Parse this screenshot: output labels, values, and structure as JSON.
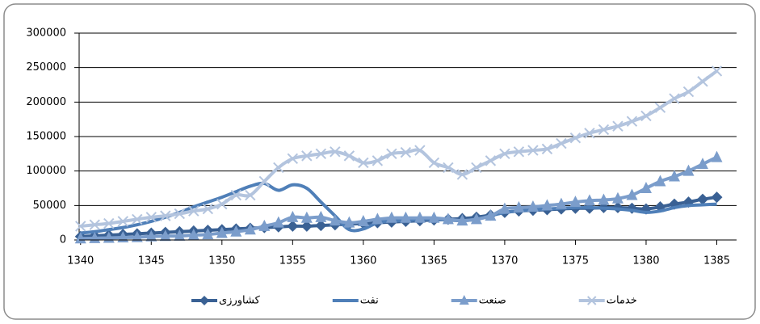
{
  "chart_data": {
    "type": "line",
    "x": [
      1340,
      1341,
      1342,
      1343,
      1344,
      1345,
      1346,
      1347,
      1348,
      1349,
      1350,
      1351,
      1352,
      1353,
      1354,
      1355,
      1356,
      1357,
      1358,
      1359,
      1360,
      1361,
      1362,
      1363,
      1364,
      1365,
      1366,
      1367,
      1368,
      1369,
      1370,
      1371,
      1372,
      1373,
      1374,
      1375,
      1376,
      1377,
      1378,
      1379,
      1380,
      1381,
      1382,
      1383,
      1384,
      1385
    ],
    "xlim": [
      1339.9,
      1386.4
    ],
    "xticks": [
      1340,
      1345,
      1350,
      1355,
      1360,
      1365,
      1370,
      1375,
      1380,
      1385
    ],
    "ylim": [
      0,
      300000
    ],
    "yticks": [
      0,
      50000,
      100000,
      150000,
      200000,
      250000,
      300000
    ],
    "grid": true,
    "legend": "bottom",
    "series": [
      {
        "name": "کشاورزی",
        "color": "#3a6194",
        "marker": "diamond",
        "values": [
          5000,
          6000,
          7000,
          8000,
          9000,
          10000,
          11000,
          12000,
          13000,
          14000,
          15000,
          16000,
          17000,
          18000,
          19000,
          20000,
          20000,
          21000,
          22000,
          23000,
          24000,
          25000,
          26000,
          27000,
          28000,
          29000,
          30000,
          31000,
          33000,
          36000,
          40000,
          42000,
          43000,
          44000,
          45000,
          46000,
          46000,
          47000,
          47000,
          46000,
          45000,
          48000,
          52000,
          55000,
          59000,
          62000
        ]
      },
      {
        "name": "نفت",
        "color": "#4f7fb8",
        "marker": "none",
        "values": [
          10000,
          12000,
          15000,
          18000,
          22000,
          27000,
          33000,
          40000,
          48000,
          55000,
          62000,
          70000,
          78000,
          82000,
          72000,
          80000,
          75000,
          55000,
          35000,
          15000,
          16000,
          25000,
          28000,
          28000,
          30000,
          30000,
          29000,
          28000,
          30000,
          35000,
          40000,
          42000,
          44000,
          45000,
          46000,
          47000,
          47000,
          46000,
          45000,
          43000,
          40000,
          42000,
          47000,
          50000,
          51000,
          52000
        ]
      },
      {
        "name": "صنعت",
        "color": "#7b9dcb",
        "marker": "triangle",
        "values": [
          2000,
          2500,
          3000,
          3500,
          4000,
          5000,
          5500,
          6000,
          7000,
          8000,
          10000,
          12000,
          15000,
          20000,
          25000,
          33000,
          32000,
          33000,
          28000,
          25000,
          27000,
          30000,
          32000,
          32000,
          32000,
          32000,
          30000,
          28000,
          30000,
          35000,
          45000,
          47000,
          48000,
          50000,
          52000,
          55000,
          57000,
          58000,
          60000,
          65000,
          75000,
          85000,
          92000,
          100000,
          110000,
          120000
        ]
      },
      {
        "name": "خدمات",
        "color": "#b3c4de",
        "marker": "x",
        "values": [
          20000,
          22000,
          24000,
          27000,
          30000,
          33000,
          35000,
          38000,
          42000,
          45000,
          52000,
          65000,
          65000,
          85000,
          105000,
          118000,
          122000,
          125000,
          128000,
          122000,
          112000,
          115000,
          125000,
          127000,
          130000,
          112000,
          105000,
          95000,
          105000,
          115000,
          125000,
          128000,
          130000,
          132000,
          140000,
          148000,
          155000,
          160000,
          165000,
          172000,
          180000,
          192000,
          205000,
          215000,
          230000,
          245000
        ]
      }
    ]
  }
}
